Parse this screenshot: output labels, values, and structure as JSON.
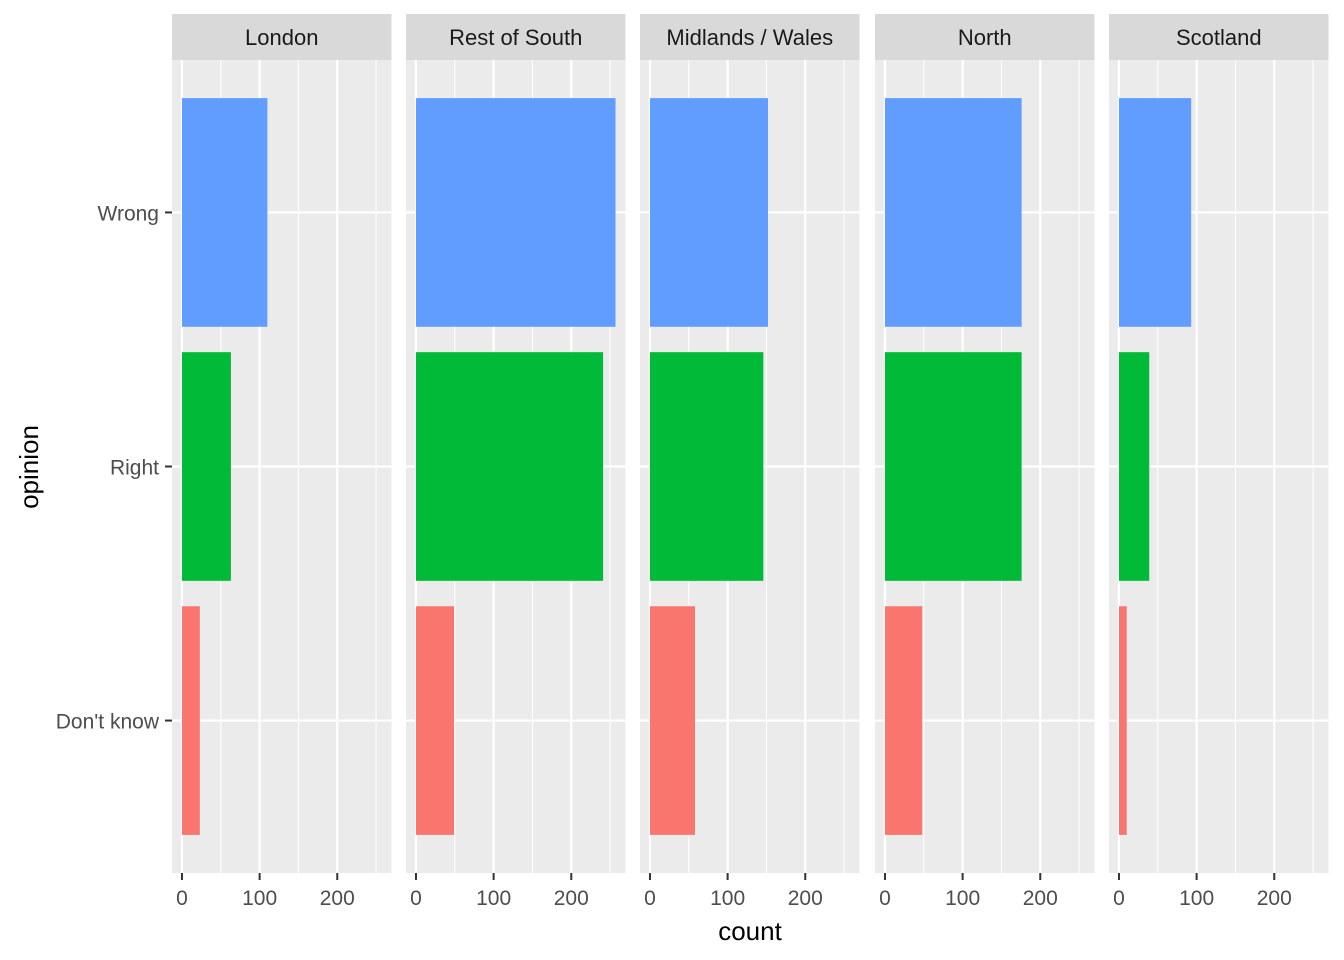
{
  "chart_data": {
    "type": "bar",
    "orientation": "horizontal",
    "facet_by": "region",
    "xlabel": "count",
    "ylabel": "opinion",
    "xlim": [
      -12.85,
      269.85
    ],
    "x_ticks": [
      0,
      100,
      200
    ],
    "x_tick_labels": [
      "0",
      "100",
      "200"
    ],
    "x_minor_ticks": [
      50,
      150,
      250
    ],
    "grid": true,
    "categories": [
      "Don't know",
      "Right",
      "Wrong"
    ],
    "colors": {
      "Don't know": "#F8766D",
      "Right": "#00BA38",
      "Wrong": "#619CFF"
    },
    "panels": [
      {
        "title": "London",
        "values": {
          "Wrong": 110,
          "Right": 63,
          "Don't know": 23
        }
      },
      {
        "title": "Rest of South",
        "values": {
          "Wrong": 257,
          "Right": 241,
          "Don't know": 49
        }
      },
      {
        "title": "Midlands / Wales",
        "values": {
          "Wrong": 152,
          "Right": 146,
          "Don't know": 58
        }
      },
      {
        "title": "North",
        "values": {
          "Wrong": 176,
          "Right": 176,
          "Don't know": 48
        }
      },
      {
        "title": "Scotland",
        "values": {
          "Wrong": 93,
          "Right": 39,
          "Don't know": 10
        }
      }
    ],
    "legend": "none"
  },
  "theme": {
    "panel_background": "#EBEBEB",
    "strip_background": "#D9D9D9",
    "grid_color": "#FFFFFF",
    "tick_color": "#333333"
  }
}
